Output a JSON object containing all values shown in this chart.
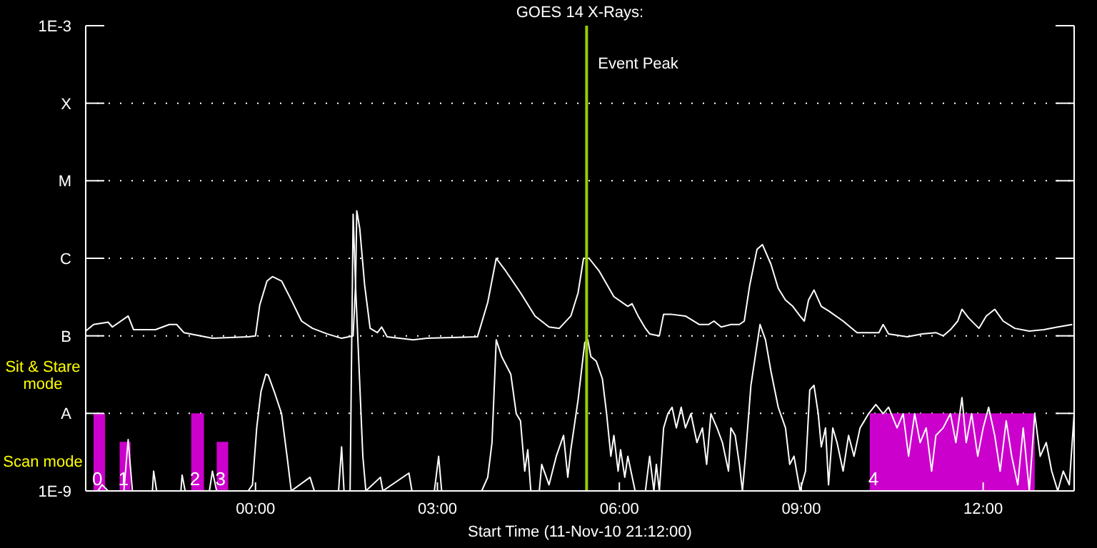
{
  "chart_data": {
    "type": "line",
    "title": "GOES 14 X-Rays:",
    "xlabel": "Start Time (11-Nov-10 21:12:00)",
    "log": "y",
    "grid": "y",
    "xlim": [
      -2.8,
      13.5
    ],
    "xticks": [
      {
        "value": 0,
        "label": "00:00"
      },
      {
        "value": 3,
        "label": "03:00"
      },
      {
        "value": 6,
        "label": "06:00"
      },
      {
        "value": 9,
        "label": "09:00"
      },
      {
        "value": 12,
        "label": "12:00"
      }
    ],
    "ylim": [
      1e-09,
      0.001
    ],
    "yticks": [
      {
        "value": 1e-09,
        "label": "1E-9"
      },
      {
        "value": 1e-08,
        "label": "A"
      },
      {
        "value": 1e-07,
        "label": "B"
      },
      {
        "value": 1e-06,
        "label": "C"
      },
      {
        "value": 1e-05,
        "label": "M"
      },
      {
        "value": 0.0001,
        "label": "X"
      },
      {
        "value": 0.001,
        "label": "1E-3"
      }
    ],
    "series": [
      {
        "type": "area",
        "color": "#cc00cc",
        "x": [
          -2.67,
          -2.67,
          -2.48,
          -2.48,
          -2.24,
          -2.24,
          -2.06,
          -2.06,
          -1.06,
          -1.06,
          -0.85,
          -0.85,
          -0.64,
          -0.64,
          -0.45,
          -0.45,
          10.13,
          10.13,
          12.85,
          12.85
        ],
        "values": [
          1e-09,
          1e-08,
          1e-08,
          1e-09,
          1e-09,
          4.3e-09,
          4.3e-09,
          1e-09,
          1e-09,
          1e-08,
          1e-08,
          1e-09,
          1e-09,
          4.3e-09,
          4.3e-09,
          1e-09,
          1e-09,
          1e-08,
          1e-08,
          1e-09
        ]
      },
      {
        "color": "#ffffff",
        "x": [
          -2.8,
          -2.67,
          -2.43,
          -2.36,
          -2.1,
          -2.01,
          -1.65,
          -1.42,
          -1.3,
          -1.18,
          -0.71,
          -0.12,
          0,
          0.07,
          0.19,
          0.28,
          0.43,
          0.59,
          0.76,
          0.94,
          1.18,
          1.42,
          1.61,
          1.65,
          1.67,
          1.72,
          1.8,
          1.89,
          2.01,
          2.08,
          2.17,
          2.6,
          2.83,
          3.66,
          3.83,
          3.97,
          4.13,
          4.37,
          4.61,
          4.84,
          5.01,
          5.2,
          5.32,
          5.41,
          5.5,
          5.67,
          5.91,
          6.14,
          6.21,
          6.31,
          6.43,
          6.5,
          6.66,
          6.73,
          6.85,
          7.09,
          7.32,
          7.47,
          7.56,
          7.68,
          7.84,
          7.98,
          8.06,
          8.15,
          8.27,
          8.36,
          8.5,
          8.62,
          8.74,
          8.86,
          8.98,
          9.05,
          9.12,
          9.21,
          9.33,
          9.45,
          9.69,
          9.92,
          10.16,
          10.28,
          10.35,
          10.44,
          10.75,
          10.99,
          11.22,
          11.34,
          11.46,
          11.58,
          11.65,
          11.76,
          11.93,
          12.05,
          12.19,
          12.33,
          12.52,
          12.76,
          13.0,
          13.23,
          13.47
        ],
        "values": [
          1.15e-07,
          1.4e-07,
          1.5e-07,
          1.3e-07,
          1.8e-07,
          1.2e-07,
          1.2e-07,
          1.4e-07,
          1.4e-07,
          1.1e-07,
          9.3e-08,
          9.7e-08,
          1e-07,
          2.5e-07,
          5.1e-07,
          5.8e-07,
          5.1e-07,
          2.9e-07,
          1.55e-07,
          1.25e-07,
          1.06e-07,
          9.3e-08,
          1e-07,
          4.5e-07,
          4.1e-06,
          2.4e-06,
          4.5e-07,
          1.25e-07,
          1.1e-07,
          1.3e-07,
          9.7e-08,
          8.9e-08,
          9.3e-08,
          9.7e-08,
          2.7e-07,
          1e-06,
          6.8e-07,
          3.6e-07,
          1.8e-07,
          1.3e-07,
          1.25e-07,
          1.8e-07,
          3.6e-07,
          1e-06,
          1e-06,
          6.8e-07,
          3.2e-07,
          2.4e-07,
          2.6e-07,
          1.8e-07,
          1.25e-07,
          1.06e-07,
          1e-07,
          1.9e-07,
          1.9e-07,
          1.8e-07,
          1.4e-07,
          1.4e-07,
          1.55e-07,
          1.3e-07,
          1.4e-07,
          1.4e-07,
          1.55e-07,
          4.5e-07,
          1.3e-06,
          1.5e-06,
          8.4e-07,
          4.1e-07,
          2.9e-07,
          2.4e-07,
          1.8e-07,
          1.55e-07,
          2.9e-07,
          3.9e-07,
          2.4e-07,
          2.1e-07,
          1.55e-07,
          1.1e-07,
          1.1e-07,
          1.1e-07,
          1.4e-07,
          1.06e-07,
          9.7e-08,
          1.06e-07,
          1.1e-07,
          1e-07,
          1.2e-07,
          1.55e-07,
          2.2e-07,
          1.7e-07,
          1.25e-07,
          1.8e-07,
          2.2e-07,
          1.55e-07,
          1.25e-07,
          1.15e-07,
          1.2e-07,
          1.3e-07,
          1.4e-07
        ]
      },
      {
        "color": "#ffffff",
        "x": [
          -2.8,
          -2.6,
          -2.53,
          -2.43,
          -2.17,
          -2.1,
          -2.03,
          -1.7,
          -1.68,
          -1.63,
          -1.23,
          -1.21,
          -1.16,
          -0.76,
          -0.71,
          -0.64,
          -0.12,
          -0.05,
          0.02,
          0.09,
          0.17,
          0.21,
          0.31,
          0.43,
          0.52,
          0.59,
          0.9,
          0.97,
          1.37,
          1.42,
          1.46,
          1.56,
          1.61,
          1.65,
          1.7,
          1.77,
          1.82,
          2.06,
          2.1,
          2.53,
          2.58,
          2.95,
          3.02,
          3.07,
          3.73,
          3.83,
          3.9,
          3.97,
          4.06,
          4.21,
          4.3,
          4.37,
          4.44,
          4.49,
          4.54,
          4.68,
          4.72,
          4.84,
          4.96,
          5.08,
          5.15,
          5.2,
          5.32,
          5.43,
          5.48,
          5.53,
          5.62,
          5.72,
          5.79,
          5.86,
          5.91,
          5.98,
          6.02,
          6.09,
          6.14,
          6.26,
          6.43,
          6.5,
          6.57,
          6.61,
          6.66,
          6.73,
          6.8,
          6.87,
          6.94,
          7.02,
          7.09,
          7.18,
          7.28,
          7.37,
          7.44,
          7.51,
          7.61,
          7.7,
          7.8,
          7.84,
          7.91,
          7.98,
          8.03,
          8.08,
          8.17,
          8.32,
          8.41,
          8.5,
          8.62,
          8.74,
          8.81,
          8.88,
          8.98,
          9.07,
          9.14,
          9.21,
          9.28,
          9.33,
          9.4,
          9.45,
          9.52,
          9.59,
          9.69,
          9.78,
          9.87,
          9.97,
          10.04,
          10.11,
          10.23,
          10.35,
          10.44,
          10.58,
          10.68,
          10.77,
          10.87,
          10.96,
          11.06,
          11.15,
          11.22,
          11.34,
          11.46,
          11.55,
          11.65,
          11.72,
          11.81,
          11.91,
          12.0,
          12.09,
          12.19,
          12.28,
          12.38,
          12.47,
          12.57,
          12.66,
          12.76,
          12.85,
          12.94,
          13.04,
          13.13,
          13.23,
          13.32,
          13.42,
          13.5
        ],
        "values": [
          1e-09,
          1e-09,
          1.2e-09,
          1e-09,
          1e-09,
          4.6e-09,
          1e-09,
          1e-09,
          1.8e-09,
          1e-09,
          1e-09,
          1.6e-09,
          1e-09,
          1e-09,
          1.8e-09,
          1e-09,
          1e-09,
          1.2e-09,
          6.5e-09,
          1.9e-08,
          3.2e-08,
          3.1e-08,
          1.9e-08,
          9.9e-09,
          2.8e-09,
          1e-09,
          1.5e-09,
          1e-09,
          1e-09,
          3.7e-09,
          1e-09,
          1e-09,
          3.7e-06,
          4.5e-07,
          5.4e-08,
          2.8e-09,
          1e-09,
          1.5e-09,
          1e-09,
          1.7e-09,
          1e-09,
          1e-09,
          2.8e-09,
          1e-09,
          1e-09,
          1.5e-09,
          4.2e-09,
          8.9e-08,
          5.4e-08,
          3.2e-08,
          9.9e-09,
          8e-09,
          1.8e-09,
          3.4e-09,
          1e-09,
          1e-09,
          2.2e-09,
          1.2e-09,
          2.8e-09,
          5.2e-09,
          1.5e-09,
          3.4e-09,
          1.5e-08,
          8.2e-08,
          8.9e-08,
          5.4e-08,
          4.7e-08,
          2.8e-08,
          9.9e-09,
          2.8e-09,
          5.2e-09,
          1.8e-09,
          3.4e-09,
          1.5e-09,
          2.8e-09,
          1e-09,
          1e-09,
          2.8e-09,
          1e-09,
          2.2e-09,
          1e-09,
          6.5e-09,
          9.9e-09,
          1.2e-08,
          6.5e-09,
          1.2e-08,
          6.5e-09,
          9.9e-09,
          4.2e-09,
          6.5e-09,
          2.2e-09,
          9.9e-09,
          6.5e-09,
          4.2e-09,
          1.8e-09,
          6.5e-09,
          5.2e-09,
          2.2e-09,
          1e-09,
          2.8e-09,
          2.3e-08,
          1.4e-07,
          8.9e-08,
          3.5e-08,
          1.2e-08,
          6.5e-09,
          2.2e-09,
          2.8e-09,
          1e-09,
          1.8e-09,
          2e-08,
          2.3e-08,
          9.9e-09,
          3.7e-09,
          6.5e-09,
          1.2e-09,
          6.5e-09,
          4.2e-09,
          1.8e-09,
          5.2e-09,
          2.8e-09,
          6.5e-09,
          8e-09,
          9.9e-09,
          1.3e-08,
          9.9e-09,
          1.2e-08,
          6.5e-09,
          9.9e-09,
          2.8e-09,
          9.9e-09,
          4.2e-09,
          6.5e-09,
          1.8e-09,
          5.2e-09,
          6.5e-09,
          9.9e-09,
          4.2e-09,
          1.6e-08,
          4.2e-09,
          9.9e-09,
          2.8e-09,
          6.5e-09,
          1.2e-08,
          5.2e-09,
          1.8e-09,
          8e-09,
          2.8e-09,
          1.2e-09,
          6.5e-09,
          1e-09,
          9.9e-09,
          2.8e-09,
          4.2e-09,
          1.8e-09,
          1e-09,
          1.8e-09,
          1.2e-09,
          9.9e-09
        ]
      }
    ],
    "ref_lines": [
      {
        "axis": "x",
        "value": 5.46,
        "label": "Event Peak",
        "color": "#99cc00"
      }
    ],
    "annotations": [
      "Sit & Stare mode",
      "Scan mode",
      {
        "text": "0",
        "x": -2.67,
        "y": 1e-09
      },
      {
        "text": "1",
        "x": -2.24,
        "y": 1e-09
      },
      {
        "text": "2",
        "x": -1.06,
        "y": 1e-09
      },
      {
        "text": "3",
        "x": -0.64,
        "y": 1e-09
      },
      {
        "text": "4",
        "x": 10.13,
        "y": 1e-09
      }
    ]
  }
}
